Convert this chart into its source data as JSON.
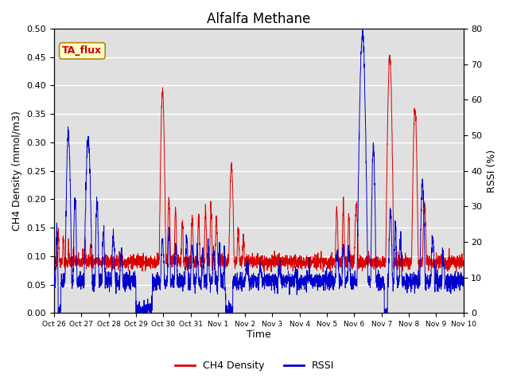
{
  "title": "Alfalfa Methane",
  "ylabel_left": "CH4 Density (mmol/m3)",
  "ylabel_right": "RSSI (%)",
  "xlabel": "Time",
  "ylim_left": [
    0.0,
    0.5
  ],
  "ylim_right": [
    0,
    80
  ],
  "xtick_labels": [
    "Oct 26",
    "Oct 27",
    "Oct 28",
    "Oct 29",
    "Oct 30",
    "Oct 31",
    "Nov 1",
    "Nov 2",
    "Nov 3",
    "Nov 4",
    "Nov 5",
    "Nov 6",
    "Nov 7",
    "Nov 8",
    "Nov 9",
    "Nov 10"
  ],
  "annotation_text": "TA_flux",
  "annotation_color": "#cc0000",
  "annotation_bg": "#ffffcc",
  "annotation_border": "#bb8800",
  "ch4_color": "#dd0000",
  "rssi_color": "#0000cc",
  "background_color": "#e0e0e0",
  "grid_color": "#ffffff",
  "title_fontsize": 12,
  "axis_label_fontsize": 9,
  "tick_fontsize": 8,
  "legend_fontsize": 9
}
